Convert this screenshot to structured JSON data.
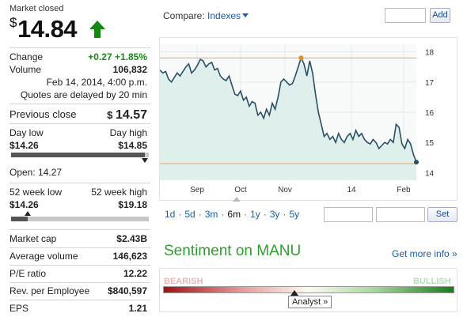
{
  "quote": {
    "status": "Market closed",
    "currency_symbol": "$",
    "price": "14.84",
    "direction_icon": "up-arrow-icon",
    "change_label": "Change",
    "change_value": "+0.27 +1.85%",
    "volume_label": "Volume",
    "volume_value": "106,832",
    "timestamp": "Feb 14, 2014, 4:00 p.m.",
    "delay_note": "Quotes are delayed by 20 min",
    "prev_close_label": "Previous close",
    "prev_close_symbol": "$",
    "prev_close_value": "14.57",
    "day_low_label": "Day low",
    "day_high_label": "Day high",
    "day_low_value": "$14.26",
    "day_high_value": "$14.85",
    "day_range_position": 0.97,
    "open_label": "Open: 14.27",
    "wk52_low_label": "52 week low",
    "wk52_high_label": "52 week high",
    "wk52_low_value": "$14.26",
    "wk52_high_value": "$19.18",
    "wk52_range_position": 0.12
  },
  "stats": [
    {
      "label": "Market cap",
      "value": "$2.43B"
    },
    {
      "label": "Average volume",
      "value": "146,623"
    },
    {
      "label": "P/E ratio",
      "value": "12.22"
    },
    {
      "label": "Rev. per Employee",
      "value": "$840,597"
    },
    {
      "label": "EPS",
      "value": "1.21"
    }
  ],
  "compare": {
    "label": "Compare:",
    "dropdown_value": "Indexes",
    "add_label": "Add"
  },
  "range_buttons": [
    "1d",
    "5d",
    "3m",
    "6m",
    "1y",
    "3y",
    "5y"
  ],
  "active_range": "6m",
  "set_label": "Set",
  "sentiment": {
    "title": "Sentiment on MANU",
    "more_info": "Get more info »",
    "bearish": "BEARISH",
    "bullish": "BULLISH",
    "analyst": "Analyst »",
    "position": 0.45
  },
  "chart_data": {
    "type": "area",
    "x_ticks": [
      "Sep",
      "Oct",
      "Nov",
      "14",
      "Feb"
    ],
    "y_ticks": [
      18,
      17,
      16,
      15,
      14
    ],
    "ylim": [
      13.75,
      18.25
    ],
    "high_line": 17.8,
    "low_line": 14.3,
    "colors": {
      "line": "#2b4f63",
      "fill": "#dff0ec",
      "ref": "#e8a76a",
      "marker": "#e58b2b"
    },
    "values": [
      17.4,
      17.3,
      17.35,
      17.1,
      17.0,
      17.15,
      17.3,
      17.2,
      17.35,
      17.5,
      17.6,
      17.3,
      17.4,
      17.55,
      17.75,
      17.7,
      17.5,
      17.6,
      17.65,
      17.4,
      17.45,
      17.2,
      17.1,
      17.05,
      17.2,
      16.9,
      16.6,
      16.55,
      16.7,
      16.4,
      16.5,
      16.2,
      16.35,
      16.3,
      15.9,
      16.0,
      15.8,
      16.1,
      15.9,
      16.3,
      16.1,
      16.5,
      17.0,
      17.1,
      17.0,
      16.9,
      16.95,
      17.2,
      17.5,
      17.8,
      17.6,
      17.2,
      17.7,
      17.3,
      16.6,
      16.0,
      15.6,
      15.2,
      15.3,
      15.1,
      15.2,
      15.0,
      15.3,
      15.1,
      15.0,
      15.2,
      15.3,
      15.1,
      15.4,
      15.2,
      15.3,
      15.1,
      15.0,
      14.95,
      15.1,
      15.0,
      14.8,
      14.9,
      15.0,
      14.95,
      15.1,
      15.0,
      15.6,
      15.5,
      14.95,
      14.8,
      15.1,
      14.95,
      14.6,
      14.35
    ]
  }
}
